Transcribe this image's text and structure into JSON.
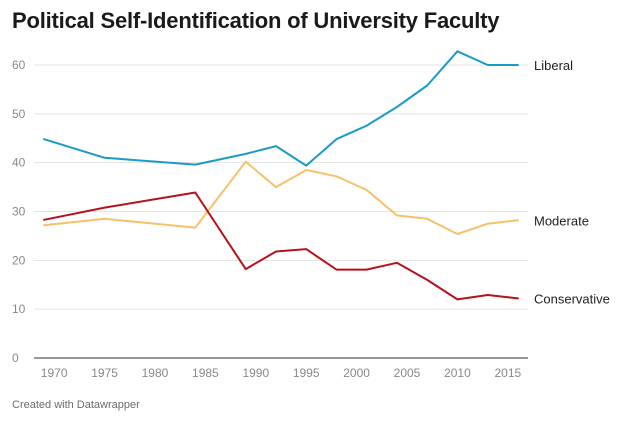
{
  "footer": "Created with Datawrapper",
  "chart_data": {
    "type": "line",
    "title": "Political Self-Identification of University Faculty",
    "xlabel": "",
    "ylabel": "",
    "xlim": [
      1968,
      2017
    ],
    "ylim": [
      0,
      60
    ],
    "x_ticks": [
      1970,
      1975,
      1980,
      1985,
      1990,
      1995,
      2000,
      2005,
      2010,
      2015
    ],
    "y_ticks": [
      0,
      10,
      20,
      30,
      40,
      50,
      60
    ],
    "grid": true,
    "series": [
      {
        "name": "Liberal",
        "color": "#1a9bc7",
        "x": [
          1969,
          1975,
          1984,
          1989,
          1992,
          1995,
          1998,
          2001,
          2004,
          2007,
          2010,
          2013,
          2016
        ],
        "values": [
          44.8,
          41.0,
          39.6,
          41.8,
          43.4,
          39.4,
          44.8,
          47.6,
          51.4,
          55.8,
          62.8,
          60.0,
          60.0
        ]
      },
      {
        "name": "Moderate",
        "color": "#f5c26b",
        "x": [
          1969,
          1975,
          1984,
          1989,
          1992,
          1995,
          1998,
          2001,
          2004,
          2007,
          2010,
          2013,
          2016
        ],
        "values": [
          27.2,
          28.5,
          26.7,
          40.2,
          35.0,
          38.5,
          37.2,
          34.4,
          29.2,
          28.5,
          25.4,
          27.5,
          28.2
        ]
      },
      {
        "name": "Conservative",
        "color": "#b5121b",
        "x": [
          1969,
          1975,
          1984,
          1989,
          1992,
          1995,
          1998,
          2001,
          2004,
          2007,
          2010,
          2013,
          2016
        ],
        "values": [
          28.3,
          30.8,
          33.9,
          18.2,
          21.8,
          22.3,
          18.1,
          18.1,
          19.5,
          16.0,
          12.0,
          12.9,
          12.2
        ]
      }
    ]
  }
}
